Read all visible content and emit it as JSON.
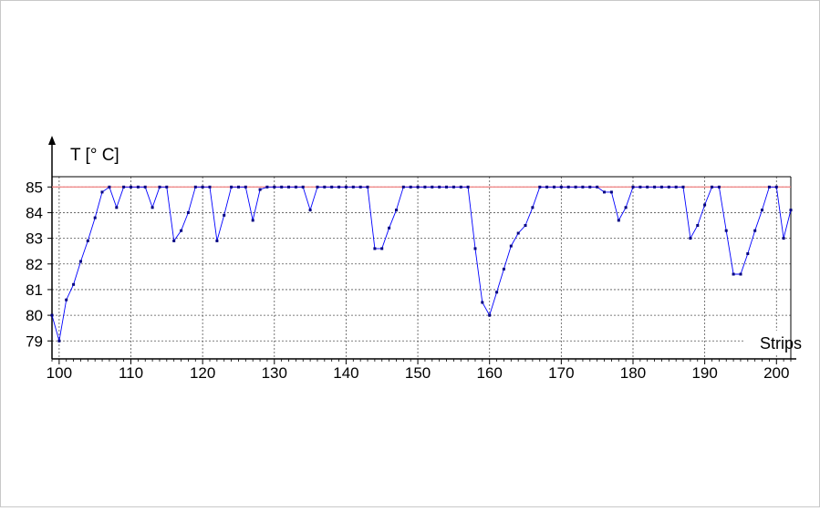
{
  "chart_data": {
    "type": "line",
    "title": "",
    "ylabel": "T [°  C]",
    "xlabel": "Strips",
    "xlim": [
      99,
      202
    ],
    "ylim": [
      78.3,
      85.4
    ],
    "xticks": [
      100,
      110,
      120,
      130,
      140,
      150,
      160,
      170,
      180,
      190,
      200
    ],
    "yticks": [
      79,
      80,
      81,
      82,
      83,
      84,
      85
    ],
    "grid": true,
    "reference_line": {
      "value": 85,
      "color": "#f08080"
    },
    "series": [
      {
        "color": "#0000ff",
        "x": [
          99,
          100,
          101,
          102,
          103,
          104,
          105,
          106,
          107,
          108,
          109,
          110,
          111,
          112,
          113,
          114,
          115,
          116,
          117,
          118,
          119,
          120,
          121,
          122,
          123,
          124,
          125,
          126,
          127,
          128,
          129,
          130,
          131,
          132,
          133,
          134,
          135,
          136,
          137,
          138,
          139,
          140,
          141,
          142,
          143,
          144,
          145,
          146,
          147,
          148,
          149,
          150,
          151,
          152,
          153,
          154,
          155,
          156,
          157,
          158,
          159,
          160,
          161,
          162,
          163,
          164,
          165,
          166,
          167,
          168,
          169,
          170,
          171,
          172,
          173,
          174,
          175,
          176,
          177,
          178,
          179,
          180,
          181,
          182,
          183,
          184,
          185,
          186,
          187,
          188,
          189,
          190,
          191,
          192,
          193,
          194,
          195,
          196,
          197,
          198,
          199,
          200,
          201,
          202
        ],
        "y": [
          80.0,
          79.0,
          80.6,
          81.2,
          82.1,
          82.9,
          83.8,
          84.8,
          85.0,
          84.2,
          85.0,
          85.0,
          85.0,
          85.0,
          84.2,
          85.0,
          85.0,
          82.9,
          83.3,
          84.0,
          85.0,
          85.0,
          85.0,
          82.9,
          83.9,
          85.0,
          85.0,
          85.0,
          83.7,
          84.9,
          85.0,
          85.0,
          85.0,
          85.0,
          85.0,
          85.0,
          84.1,
          85.0,
          85.0,
          85.0,
          85.0,
          85.0,
          85.0,
          85.0,
          85.0,
          82.6,
          82.6,
          83.4,
          84.1,
          85.0,
          85.0,
          85.0,
          85.0,
          85.0,
          85.0,
          85.0,
          85.0,
          85.0,
          85.0,
          82.6,
          80.5,
          80.0,
          80.9,
          81.8,
          82.7,
          83.2,
          83.5,
          84.2,
          85.0,
          85.0,
          85.0,
          85.0,
          85.0,
          85.0,
          85.0,
          85.0,
          85.0,
          84.8,
          84.8,
          83.7,
          84.2,
          85.0,
          85.0,
          85.0,
          85.0,
          85.0,
          85.0,
          85.0,
          85.0,
          83.0,
          83.5,
          84.3,
          85.0,
          85.0,
          83.3,
          81.6,
          81.6,
          82.4,
          83.3,
          84.1,
          85.0,
          85.0,
          83.0,
          84.1
        ]
      }
    ]
  }
}
